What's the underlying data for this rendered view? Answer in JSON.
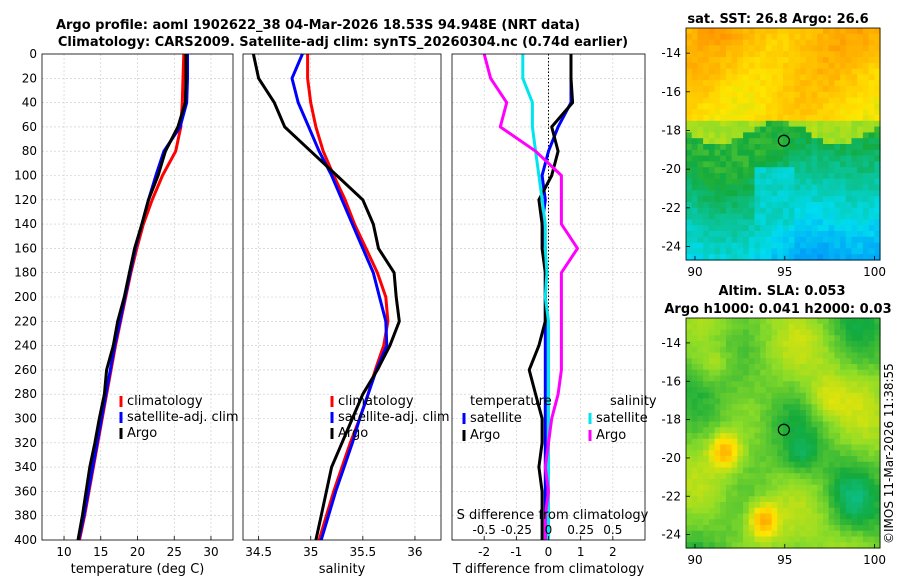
{
  "figure": {
    "title_line1": "Argo profile: aoml 1902622_38 04-Mar-2026 18.53S 94.948E (NRT data)",
    "title_line2": "Climatology: CARS2009. Satellite-adj clim: synTS_20260304.nc (0.74d earlier)",
    "watermark": "©IMOS 11-Mar-2026 11:38:55"
  },
  "colors": {
    "climatology": "#ff0000",
    "satellite": "#0000ff",
    "argo": "#000000",
    "cyan": "#00e5ee",
    "magenta": "#ff00ff"
  },
  "chart_data": [
    {
      "type": "line",
      "id": "temperature",
      "xlabel": "temperature (deg C)",
      "ylabel": "",
      "xlim": [
        7,
        33
      ],
      "ylim": [
        0,
        400
      ],
      "xticks": [
        10,
        15,
        20,
        25,
        30
      ],
      "xtick_labels": [
        "10",
        "15",
        "20",
        "25",
        "30"
      ],
      "yticks": [
        0,
        20,
        40,
        60,
        80,
        100,
        120,
        140,
        160,
        180,
        200,
        220,
        240,
        260,
        280,
        300,
        320,
        340,
        360,
        380,
        400
      ],
      "ytick_labels": [
        "0",
        "20",
        "40",
        "60",
        "80",
        "100",
        "120",
        "140",
        "160",
        "180",
        "200",
        "220",
        "240",
        "260",
        "280",
        "300",
        "320",
        "340",
        "360",
        "380",
        "400"
      ],
      "legend": [
        "climatology",
        "satellite-adj. clim",
        "Argo"
      ],
      "series": [
        {
          "name": "climatology",
          "color": "#ff0000",
          "x": [
            26.3,
            26.2,
            26.1,
            25.9,
            25.2,
            23.4,
            22.0,
            20.8,
            19.9,
            19.1,
            18.4,
            17.7,
            17.0,
            16.4,
            15.8,
            15.2,
            14.6,
            14.0,
            13.4,
            12.8,
            12.1
          ],
          "y": [
            0,
            20,
            40,
            60,
            80,
            100,
            120,
            140,
            160,
            180,
            200,
            220,
            240,
            260,
            280,
            300,
            320,
            340,
            360,
            380,
            400
          ]
        },
        {
          "name": "satellite-adj. clim",
          "color": "#0000ff",
          "x": [
            26.8,
            26.8,
            26.7,
            25.8,
            23.6,
            22.5,
            21.5,
            20.6,
            19.7,
            19.0,
            18.3,
            17.6,
            16.9,
            16.3,
            15.7,
            15.1,
            14.5,
            13.9,
            13.3,
            12.7,
            12.0
          ],
          "y": [
            0,
            20,
            40,
            60,
            80,
            100,
            120,
            140,
            160,
            180,
            200,
            220,
            240,
            260,
            280,
            300,
            320,
            340,
            360,
            380,
            400
          ]
        },
        {
          "name": "Argo",
          "color": "#000000",
          "x": [
            26.6,
            26.6,
            26.5,
            25.5,
            23.8,
            22.8,
            21.5,
            20.6,
            19.6,
            18.9,
            18.2,
            17.3,
            16.7,
            15.8,
            15.5,
            14.8,
            14.2,
            13.5,
            13.0,
            12.5,
            11.9
          ],
          "y": [
            0,
            20,
            40,
            60,
            80,
            100,
            120,
            140,
            160,
            180,
            200,
            220,
            240,
            260,
            280,
            300,
            320,
            340,
            360,
            380,
            400
          ]
        }
      ]
    },
    {
      "type": "line",
      "id": "salinity",
      "xlabel": "salinity",
      "ylabel": "",
      "xlim": [
        34.35,
        36.25
      ],
      "ylim": [
        0,
        400
      ],
      "xticks": [
        34.5,
        35,
        35.5,
        36
      ],
      "xtick_labels": [
        "34.5",
        "35",
        "35.5",
        "36"
      ],
      "legend": [
        "climatology",
        "satellite-adj. clim",
        "Argo"
      ],
      "series": [
        {
          "name": "climatology",
          "color": "#ff0000",
          "x": [
            34.97,
            34.97,
            35.0,
            35.05,
            35.12,
            35.22,
            35.33,
            35.42,
            35.53,
            35.64,
            35.72,
            35.74,
            35.7,
            35.62,
            35.55,
            35.47,
            35.38,
            35.3,
            35.22,
            35.15,
            35.08
          ],
          "y": [
            0,
            20,
            40,
            60,
            80,
            100,
            120,
            140,
            160,
            180,
            200,
            220,
            240,
            260,
            280,
            300,
            320,
            340,
            360,
            380,
            400
          ]
        },
        {
          "name": "satellite-adj. clim",
          "color": "#0000ff",
          "x": [
            34.92,
            34.82,
            34.88,
            34.98,
            35.08,
            35.2,
            35.3,
            35.4,
            35.5,
            35.6,
            35.66,
            35.72,
            35.73,
            35.63,
            35.55,
            35.47,
            35.4,
            35.32,
            35.24,
            35.17,
            35.1
          ],
          "y": [
            0,
            20,
            40,
            60,
            80,
            100,
            120,
            140,
            160,
            180,
            200,
            220,
            240,
            260,
            280,
            300,
            320,
            340,
            360,
            380,
            400
          ]
        },
        {
          "name": "Argo",
          "color": "#000000",
          "x": [
            34.45,
            34.5,
            34.65,
            34.75,
            35.0,
            35.25,
            35.5,
            35.6,
            35.65,
            35.8,
            35.82,
            35.85,
            35.76,
            35.64,
            35.5,
            35.4,
            35.3,
            35.2,
            35.15,
            35.1,
            35.05
          ],
          "y": [
            0,
            20,
            40,
            60,
            80,
            100,
            120,
            140,
            160,
            180,
            200,
            220,
            240,
            260,
            280,
            300,
            320,
            340,
            360,
            380,
            400
          ]
        }
      ]
    },
    {
      "type": "line",
      "id": "difference",
      "xlabel": "T difference from climatology",
      "top_label": "S difference from climatology",
      "xlim": [
        -3,
        3
      ],
      "ylim": [
        0,
        400
      ],
      "xticks": [
        -2,
        -1,
        0,
        1,
        2
      ],
      "xtick_labels": [
        "-2",
        "-1",
        "0",
        "1",
        "2"
      ],
      "sticks_pos": [
        -2,
        -1,
        0,
        1,
        2
      ],
      "sticks_labels": [
        "-0.5",
        "-0.25",
        "0",
        "0.25",
        "0.5"
      ],
      "legend": {
        "temperature_heading": "temperature",
        "salinity_heading": "salinity",
        "entries": [
          "satellite",
          "Argo",
          "satellite",
          "Argo"
        ]
      },
      "series": [
        {
          "name": "temperature satellite",
          "color": "#0000ff",
          "x": [
            0.7,
            0.7,
            0.7,
            0.3,
            0.0,
            -0.2,
            -0.1,
            -0.2,
            -0.1,
            -0.1,
            -0.1,
            -0.1,
            -0.1,
            -0.1,
            -0.1,
            -0.1,
            -0.1,
            -0.1,
            -0.1,
            -0.1,
            -0.1
          ],
          "y": [
            0,
            20,
            40,
            60,
            80,
            100,
            120,
            140,
            160,
            180,
            200,
            220,
            240,
            260,
            280,
            300,
            320,
            340,
            360,
            380,
            400
          ]
        },
        {
          "name": "temperature Argo",
          "color": "#000000",
          "x": [
            0.7,
            0.7,
            0.75,
            0.1,
            0.3,
            0.1,
            -0.3,
            -0.2,
            -0.2,
            -0.1,
            -0.1,
            -0.1,
            -0.3,
            -0.6,
            -0.4,
            -0.2,
            -0.2,
            -0.3,
            -0.2,
            -0.2,
            -0.2
          ],
          "y": [
            0,
            20,
            40,
            60,
            80,
            100,
            120,
            140,
            160,
            180,
            200,
            220,
            240,
            260,
            280,
            300,
            320,
            340,
            360,
            380,
            400
          ]
        },
        {
          "name": "salinity satellite",
          "color": "#00e5ee",
          "x": [
            -0.8,
            -0.8,
            -0.5,
            -0.5,
            -0.4,
            -0.3,
            -0.2,
            -0.1,
            -0.1,
            -0.05,
            -0.1,
            0.0,
            0.0,
            0.0,
            0.0,
            0.0,
            0.0,
            0.0,
            0.0,
            0.0,
            0.0
          ],
          "y": [
            0,
            20,
            40,
            60,
            80,
            100,
            120,
            140,
            160,
            180,
            200,
            220,
            240,
            260,
            280,
            300,
            320,
            340,
            360,
            380,
            400
          ]
        },
        {
          "name": "salinity Argo",
          "color": "#ff00ff",
          "x": [
            -2.0,
            -1.8,
            -1.3,
            -1.5,
            -0.4,
            0.4,
            0.4,
            0.4,
            0.9,
            0.4,
            0.4,
            0.4,
            0.4,
            0.4,
            0.3,
            0.1,
            0.0,
            -0.1,
            0.0,
            -0.1,
            -0.1
          ],
          "y": [
            0,
            20,
            40,
            60,
            80,
            100,
            120,
            140,
            160,
            180,
            200,
            220,
            240,
            260,
            280,
            300,
            320,
            340,
            360,
            380,
            400
          ]
        }
      ]
    },
    {
      "type": "heatmap",
      "id": "sst_map",
      "title": "sat. SST: 26.8 Argo: 26.6",
      "xlim": [
        89.5,
        100.3
      ],
      "ylim": [
        -24.7,
        -12.7
      ],
      "xticks": [
        90,
        95,
        100
      ],
      "xtick_labels": [
        "90",
        "95",
        "100"
      ],
      "yticks": [
        -14,
        -16,
        -18,
        -20,
        -22,
        -24
      ],
      "ytick_labels": [
        "-14",
        "-16",
        "-18",
        "-20",
        "-22",
        "-24"
      ],
      "marker": {
        "lon": 94.948,
        "lat": -18.53
      }
    },
    {
      "type": "heatmap",
      "id": "sla_map",
      "title": "Altim. SLA: 0.053",
      "subtitle": "Argo h1000: 0.041 h2000: 0.03",
      "xlim": [
        89.5,
        100.3
      ],
      "ylim": [
        -24.7,
        -12.7
      ],
      "xticks": [
        90,
        95,
        100
      ],
      "xtick_labels": [
        "90",
        "95",
        "100"
      ],
      "yticks": [
        -14,
        -16,
        -18,
        -20,
        -22,
        -24
      ],
      "ytick_labels": [
        "-14",
        "-16",
        "-18",
        "-20",
        "-22",
        "-24"
      ],
      "marker": {
        "lon": 94.948,
        "lat": -18.53
      }
    }
  ]
}
